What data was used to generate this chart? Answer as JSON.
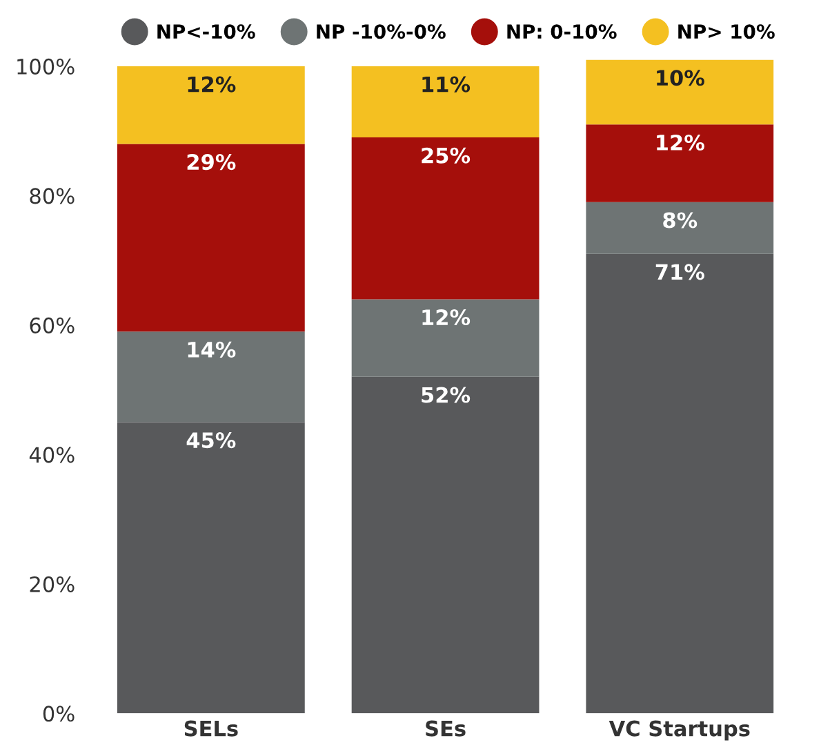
{
  "chart_data": {
    "type": "bar",
    "stacked": true,
    "categories": [
      "SELs",
      "SEs",
      "VC Startups"
    ],
    "series": [
      {
        "name": "NP<-10%",
        "color": "#58595b",
        "values": [
          45,
          52,
          71
        ],
        "value_labels": [
          "45%",
          "52%",
          "71%"
        ]
      },
      {
        "name": "NP -10%-0%",
        "color": "#6e7474",
        "values": [
          14,
          12,
          8
        ],
        "value_labels": [
          "14%",
          "12%",
          "8%"
        ]
      },
      {
        "name": "NP: 0-10%",
        "color": "#a50f0b",
        "values": [
          29,
          25,
          12
        ],
        "value_labels": [
          "29%",
          "25%",
          "12%"
        ]
      },
      {
        "name": "NP> 10%",
        "color": "#f4c021",
        "values": [
          12,
          11,
          10
        ],
        "value_labels": [
          "12%",
          "11%",
          "10%"
        ]
      }
    ],
    "ylim": [
      0,
      101
    ],
    "yticks": [
      {
        "value": 0,
        "label": "0%"
      },
      {
        "value": 20,
        "label": "20%"
      },
      {
        "value": 40,
        "label": "40%"
      },
      {
        "value": 60,
        "label": "60%"
      },
      {
        "value": 80,
        "label": "80%"
      },
      {
        "value": 100,
        "label": "100%"
      }
    ],
    "legend": "top",
    "marker": "circle",
    "grid": false
  }
}
